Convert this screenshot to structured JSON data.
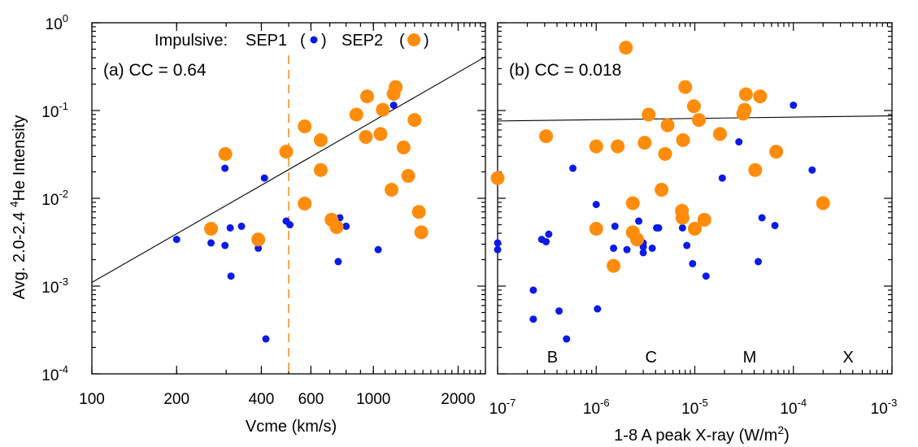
{
  "colors": {
    "sep1": "#0a1be8",
    "sep2": "#ff8c0a",
    "dashed": "#f5a85a"
  },
  "shared": {
    "ylabel_pre": "Avg. 2.0-2.4 ",
    "ylabel_sup": "4",
    "ylabel_post": "He Intensity",
    "yticks": [
      {
        "value": 0.0001,
        "base": "10",
        "exp": "-4"
      },
      {
        "value": 0.001,
        "base": "10",
        "exp": "-3"
      },
      {
        "value": 0.01,
        "base": "10",
        "exp": "-2"
      },
      {
        "value": 0.1,
        "base": "10",
        "exp": "-1"
      },
      {
        "value": 1,
        "base": "10",
        "exp": "0"
      }
    ],
    "legend": {
      "prefix": "Impulsive:",
      "sep1": "SEP1",
      "sep2": "SEP2"
    }
  },
  "chart_data": [
    {
      "type": "scatter",
      "panel": "a",
      "annotation": "(a) CC = 0.64",
      "xlabel": "Vcme (km/s)",
      "xscale": "log",
      "yscale": "log",
      "xlim": [
        100,
        2500
      ],
      "ylim": [
        0.0001,
        1
      ],
      "xticks": [
        {
          "value": 100,
          "label": "100"
        },
        {
          "value": 200,
          "label": "200"
        },
        {
          "value": 400,
          "label": "400"
        },
        {
          "value": 600,
          "label": "600"
        },
        {
          "value": 1000,
          "label": "1000"
        },
        {
          "value": 2000,
          "label": "2000"
        }
      ],
      "vline": 500,
      "fit_line": [
        [
          100,
          0.0011
        ],
        [
          2500,
          0.41
        ]
      ],
      "series": [
        {
          "name": "SEP1",
          "points": [
            [
              200,
              0.0034
            ],
            [
              265,
              0.0031
            ],
            [
              297,
              0.022
            ],
            [
              297,
              0.0029
            ],
            [
              310,
              0.0046
            ],
            [
              312,
              0.0013
            ],
            [
              340,
              0.0048
            ],
            [
              390,
              0.0027
            ],
            [
              410,
              0.017
            ],
            [
              415,
              0.00025
            ],
            [
              490,
              0.0055
            ],
            [
              505,
              0.005
            ],
            [
              750,
              0.0019
            ],
            [
              760,
              0.006
            ],
            [
              800,
              0.0048
            ],
            [
              1040,
              0.0026
            ],
            [
              1180,
              0.115
            ]
          ]
        },
        {
          "name": "SEP2",
          "points": [
            [
              265,
              0.0045
            ],
            [
              298,
              0.032
            ],
            [
              390,
              0.0034
            ],
            [
              490,
              0.034
            ],
            [
              570,
              0.066
            ],
            [
              570,
              0.0087
            ],
            [
              650,
              0.021
            ],
            [
              650,
              0.046
            ],
            [
              710,
              0.0057
            ],
            [
              740,
              0.0047
            ],
            [
              870,
              0.09
            ],
            [
              940,
              0.05
            ],
            [
              950,
              0.145
            ],
            [
              1060,
              0.054
            ],
            [
              1080,
              0.102
            ],
            [
              1160,
              0.0125
            ],
            [
              1180,
              0.155
            ],
            [
              1200,
              0.185
            ],
            [
              1280,
              0.038
            ],
            [
              1330,
              0.018
            ],
            [
              1400,
              0.078
            ],
            [
              1450,
              0.007
            ],
            [
              1480,
              0.0041
            ]
          ]
        }
      ]
    },
    {
      "type": "scatter",
      "panel": "b",
      "annotation": "(b) CC = 0.018",
      "xlabel_pre": "1-8 A peak X-ray (W/m",
      "xlabel_sup": "2",
      "xlabel_post": ")",
      "xscale": "log",
      "yscale": "log",
      "xlim": [
        1e-07,
        0.001
      ],
      "ylim": [
        0.0001,
        1
      ],
      "xticks": [
        {
          "value": 1e-07,
          "base": "10",
          "exp": "-7"
        },
        {
          "value": 1e-06,
          "base": "10",
          "exp": "-6"
        },
        {
          "value": 1e-05,
          "base": "10",
          "exp": "-5"
        },
        {
          "value": 0.0001,
          "base": "10",
          "exp": "-4"
        },
        {
          "value": 0.001,
          "base": "10",
          "exp": "-3"
        }
      ],
      "class_labels": [
        {
          "label": "B",
          "x": 3.6e-07
        },
        {
          "label": "C",
          "x": 3.6e-06
        },
        {
          "label": "M",
          "x": 3.6e-05
        },
        {
          "label": "X",
          "x": 0.00036
        }
      ],
      "fit_line": [
        [
          1e-07,
          0.076
        ],
        [
          0.001,
          0.087
        ]
      ],
      "series": [
        {
          "name": "SEP1",
          "points": [
            [
              1e-07,
              0.0031
            ],
            [
              1e-07,
              0.0026
            ],
            [
              2.3e-07,
              0.0009
            ],
            [
              2.3e-07,
              0.00042
            ],
            [
              2.8e-07,
              0.0034
            ],
            [
              3.1e-07,
              0.0032
            ],
            [
              3.3e-07,
              0.0039
            ],
            [
              4.2e-07,
              0.00052
            ],
            [
              5e-07,
              0.00025
            ],
            [
              5.8e-07,
              0.022
            ],
            [
              1e-06,
              0.0085
            ],
            [
              1.03e-06,
              0.00055
            ],
            [
              1.55e-06,
              0.0048
            ],
            [
              1.5e-06,
              0.0027
            ],
            [
              2.05e-06,
              0.0026
            ],
            [
              2.7e-06,
              0.0055
            ],
            [
              3e-06,
              0.0031
            ],
            [
              3e-06,
              0.0028
            ],
            [
              3e-06,
              0.0024
            ],
            [
              3.7e-06,
              0.0027
            ],
            [
              4.1e-06,
              0.0046
            ],
            [
              4.3e-06,
              0.0046
            ],
            [
              7.5e-06,
              0.0046
            ],
            [
              8.3e-06,
              0.0029
            ],
            [
              9.5e-06,
              0.0018
            ],
            [
              1.3e-05,
              0.0013
            ],
            [
              1.9e-05,
              0.017
            ],
            [
              2.8e-05,
              0.044
            ],
            [
              4.4e-05,
              0.0019
            ],
            [
              4.8e-05,
              0.006
            ],
            [
              6.5e-05,
              0.0049
            ],
            [
              0.0001,
              0.115
            ],
            [
              0.000155,
              0.021
            ]
          ]
        },
        {
          "name": "SEP2",
          "points": [
            [
              1e-07,
              0.017
            ],
            [
              3.1e-07,
              0.051
            ],
            [
              1e-06,
              0.039
            ],
            [
              1e-06,
              0.0045
            ],
            [
              1.5e-06,
              0.0017
            ],
            [
              1.65e-06,
              0.039
            ],
            [
              2e-06,
              0.52
            ],
            [
              2.35e-06,
              0.0088
            ],
            [
              2.35e-06,
              0.0041
            ],
            [
              2.6e-06,
              0.0034
            ],
            [
              3.1e-06,
              0.043
            ],
            [
              3.4e-06,
              0.09
            ],
            [
              4.6e-06,
              0.0125
            ],
            [
              5e-06,
              0.032
            ],
            [
              5.3e-06,
              0.068
            ],
            [
              7.4e-06,
              0.0072
            ],
            [
              7.5e-06,
              0.006
            ],
            [
              7.6e-06,
              0.046
            ],
            [
              8e-06,
              0.185
            ],
            [
              9.8e-06,
              0.112
            ],
            [
              1e-05,
              0.0045
            ],
            [
              1.1e-05,
              0.078
            ],
            [
              1.25e-05,
              0.0057
            ],
            [
              1.8e-05,
              0.054
            ],
            [
              3.1e-05,
              0.092
            ],
            [
              3.2e-05,
              0.102
            ],
            [
              3.3e-05,
              0.153
            ],
            [
              4.1e-05,
              0.021
            ],
            [
              4.6e-05,
              0.145
            ],
            [
              6.7e-05,
              0.034
            ],
            [
              0.0002,
              0.0088
            ]
          ]
        }
      ]
    }
  ]
}
